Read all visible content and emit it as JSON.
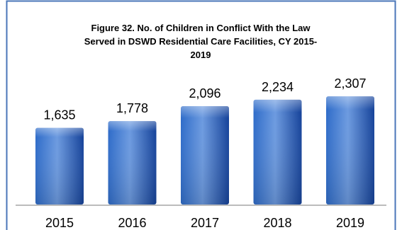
{
  "chart_data": {
    "type": "bar",
    "title_lines": [
      "Figure 32. No. of Children in Conflict With the Law",
      "Served in DSWD Residential Care Facilities, CY 2015-",
      "2019"
    ],
    "categories": [
      "2015",
      "2016",
      "2017",
      "2018",
      "2019"
    ],
    "values": [
      1635,
      1778,
      2096,
      2234,
      2307
    ],
    "value_labels": [
      "1,635",
      "1,778",
      "2,096",
      "2,234",
      "2,307"
    ],
    "ylim": [
      0,
      2700
    ],
    "grid": false,
    "legend": "none",
    "colors": {
      "bar_light": "#6d9be0",
      "bar_mid": "#2f6cc9",
      "bar_dark": "#16439a",
      "frame_border": "#4a76b8",
      "axis_line": "#a6a6a6"
    }
  }
}
